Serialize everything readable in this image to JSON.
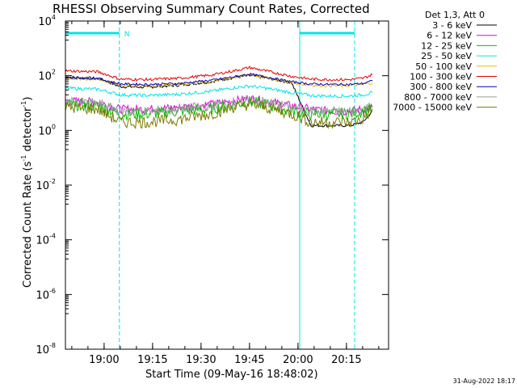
{
  "chart_data": {
    "type": "line",
    "title": "RHESSI Observing Summary Count Rates, Corrected",
    "xlabel": "Start Time (09-May-16 18:48:02)",
    "ylabel_prefix": "Corrected Count Rate (s",
    "ylabel_sup": "-1",
    "ylabel_suffix": " detector",
    "ylabel_sup2": "-1",
    "ylabel_end": ")",
    "xlim_minutes_after_start": [
      0,
      100
    ],
    "y_log_scale": true,
    "ylim": [
      1e-08,
      10000.0
    ],
    "x_ticks": [
      {
        "label": "19:00",
        "minutes_after_start": 11.97
      },
      {
        "label": "19:15",
        "minutes_after_start": 26.97
      },
      {
        "label": "19:30",
        "minutes_after_start": 41.97
      },
      {
        "label": "19:45",
        "minutes_after_start": 56.97
      },
      {
        "label": "20:00",
        "minutes_after_start": 71.97
      },
      {
        "label": "20:15",
        "minutes_after_start": 86.97
      }
    ],
    "y_ticks": [
      {
        "base": "10",
        "exp": "4",
        "value": 10000
      },
      {
        "base": "10",
        "exp": "2",
        "value": 100
      },
      {
        "base": "10",
        "exp": "0",
        "value": 1
      },
      {
        "base": "10",
        "exp": "-2",
        "value": 0.01
      },
      {
        "base": "10",
        "exp": "-4",
        "value": 0.0001
      },
      {
        "base": "10",
        "exp": "-6",
        "value": 1e-06
      },
      {
        "base": "10",
        "exp": "-8",
        "value": 1e-08
      }
    ],
    "legend_header": "Det 1,3, Att 0",
    "legend_placement": "right",
    "series": [
      {
        "name": "3 - 6 keV",
        "color": "#000000",
        "x": [
          0,
          10,
          17,
          25,
          35,
          45,
          52,
          57,
          62,
          70,
          76,
          82,
          88,
          92,
          95
        ],
        "y": [
          90,
          80,
          40,
          38,
          45,
          60,
          85,
          100,
          85,
          55,
          1.5,
          1.5,
          1.5,
          2,
          5
        ]
      },
      {
        "name": "6 - 12 keV",
        "color": "#e600e6",
        "x": [
          0,
          10,
          17,
          25,
          35,
          45,
          52,
          57,
          62,
          70,
          76,
          82,
          88,
          92,
          95
        ],
        "y": [
          12,
          11,
          6,
          6,
          7,
          9,
          12,
          15,
          12,
          8,
          6,
          5,
          5,
          6,
          7
        ]
      },
      {
        "name": "12 - 25 keV",
        "color": "#00c000",
        "x": [
          0,
          10,
          17,
          25,
          35,
          45,
          52,
          57,
          62,
          70,
          76,
          82,
          88,
          92,
          95
        ],
        "y": [
          9,
          8,
          4,
          4,
          5,
          6,
          9,
          11,
          9,
          5,
          4,
          4,
          4,
          5,
          7
        ]
      },
      {
        "name": "25 - 50 keV",
        "color": "#00e5e5",
        "x": [
          0,
          10,
          17,
          25,
          35,
          45,
          52,
          57,
          62,
          70,
          76,
          82,
          88,
          92,
          95
        ],
        "y": [
          35,
          32,
          20,
          19,
          21,
          27,
          36,
          42,
          35,
          24,
          19,
          18,
          18,
          20,
          24
        ]
      },
      {
        "name": "50 - 100 keV",
        "color": "#e5c000",
        "x": [
          0,
          10,
          17,
          25,
          35,
          45,
          52,
          57,
          62,
          70,
          76,
          82,
          88,
          92,
          95
        ],
        "y": [
          80,
          75,
          45,
          43,
          48,
          62,
          85,
          110,
          85,
          55,
          45,
          43,
          43,
          48,
          55
        ]
      },
      {
        "name": "100 - 300 keV",
        "color": "#e60000",
        "x": [
          0,
          10,
          17,
          25,
          35,
          45,
          52,
          57,
          62,
          70,
          76,
          82,
          88,
          92,
          95
        ],
        "y": [
          150,
          140,
          75,
          72,
          80,
          105,
          150,
          200,
          150,
          95,
          75,
          72,
          72,
          80,
          110
        ]
      },
      {
        "name": "300 - 800 keV",
        "color": "#0000c8",
        "x": [
          0,
          10,
          17,
          25,
          35,
          45,
          52,
          57,
          62,
          70,
          76,
          82,
          88,
          92,
          95
        ],
        "y": [
          85,
          80,
          50,
          48,
          52,
          68,
          90,
          115,
          90,
          60,
          50,
          48,
          48,
          52,
          65
        ]
      },
      {
        "name": "800 - 7000 keV",
        "color": "#9a9a9a",
        "x": [
          0,
          10,
          17,
          25,
          35,
          45,
          52,
          57,
          62,
          70,
          76,
          82,
          88,
          92,
          95
        ],
        "y": [
          11,
          10,
          5,
          5,
          6,
          8,
          11,
          13,
          11,
          7,
          5,
          5,
          5,
          6,
          8
        ]
      },
      {
        "name": "7000 - 15000 keV",
        "color": "#7a7a00",
        "x": [
          0,
          10,
          17,
          25,
          35,
          45,
          52,
          57,
          62,
          70,
          76,
          82,
          88,
          92,
          95
        ],
        "y": [
          7,
          6,
          2,
          2,
          2.5,
          4,
          7,
          9,
          7,
          4,
          2,
          2,
          2,
          2.5,
          6
        ]
      }
    ],
    "night_markers": [
      {
        "start_minutes": 0,
        "end_minutes": 16.7,
        "label": "N"
      },
      {
        "start_minutes": 72.5,
        "end_minutes": 89.5,
        "label": ""
      }
    ]
  },
  "footer": {
    "date_stamp": "31-Aug-2022 18:17"
  },
  "colors": {
    "flag": "#00e5e5",
    "axis": "#000000",
    "background": "#ffffff"
  }
}
